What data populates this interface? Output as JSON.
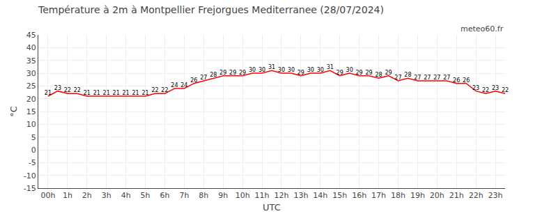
{
  "chart_data": {
    "type": "line",
    "title": "Température à 2m à Montpellier Frejorgues Mediterranee (28/07/2024)",
    "xlabel": "UTC",
    "ylabel": "°C",
    "annotations": [
      "meteo60.fr"
    ],
    "x": [
      0,
      0.5,
      1,
      1.5,
      2,
      2.5,
      3,
      3.5,
      4,
      4.5,
      5,
      5.5,
      6,
      6.5,
      7,
      7.5,
      8,
      8.5,
      9,
      9.5,
      10,
      10.5,
      11,
      11.5,
      12,
      12.5,
      13,
      13.5,
      14,
      14.5,
      15,
      15.5,
      16,
      16.5,
      17,
      17.5,
      18,
      18.5,
      19,
      19.5,
      20,
      20.5,
      21,
      21.5,
      22,
      22.5,
      23,
      23.5
    ],
    "series": [
      {
        "color": "#ff0000",
        "values": [
          21,
          23,
          22,
          22,
          21,
          21,
          21,
          21,
          21,
          21,
          21,
          22,
          22,
          24,
          24,
          26,
          27,
          28,
          29,
          29,
          29,
          30,
          30,
          31,
          30,
          30,
          29,
          30,
          30,
          31,
          29,
          30,
          29,
          29,
          28,
          29,
          27,
          28,
          27,
          27,
          27,
          27,
          26,
          26,
          23,
          22,
          23,
          22
        ]
      }
    ],
    "xlim": [
      -0.5,
      23.5
    ],
    "xticks": [
      {
        "value": 0,
        "label": "00h"
      },
      {
        "value": 1,
        "label": "1h"
      },
      {
        "value": 2,
        "label": "2h"
      },
      {
        "value": 3,
        "label": "3h"
      },
      {
        "value": 4,
        "label": "4h"
      },
      {
        "value": 5,
        "label": "5h"
      },
      {
        "value": 6,
        "label": "6h"
      },
      {
        "value": 7,
        "label": "7h"
      },
      {
        "value": 8,
        "label": "8h"
      },
      {
        "value": 9,
        "label": "9h"
      },
      {
        "value": 10,
        "label": "10h"
      },
      {
        "value": 11,
        "label": "11h"
      },
      {
        "value": 12,
        "label": "12h"
      },
      {
        "value": 13,
        "label": "13h"
      },
      {
        "value": 14,
        "label": "14h"
      },
      {
        "value": 15,
        "label": "15h"
      },
      {
        "value": 16,
        "label": "16h"
      },
      {
        "value": 17,
        "label": "17h"
      },
      {
        "value": 18,
        "label": "18h"
      },
      {
        "value": 19,
        "label": "19h"
      },
      {
        "value": 20,
        "label": "20h"
      },
      {
        "value": 21,
        "label": "21h"
      },
      {
        "value": 22,
        "label": "22h"
      },
      {
        "value": 23,
        "label": "23h"
      }
    ],
    "ylim": [
      -15,
      45
    ],
    "yticks": [
      -15,
      -10,
      -5,
      0,
      5,
      10,
      15,
      20,
      25,
      30,
      35,
      40,
      45
    ],
    "grid": true,
    "data_labels": true
  }
}
